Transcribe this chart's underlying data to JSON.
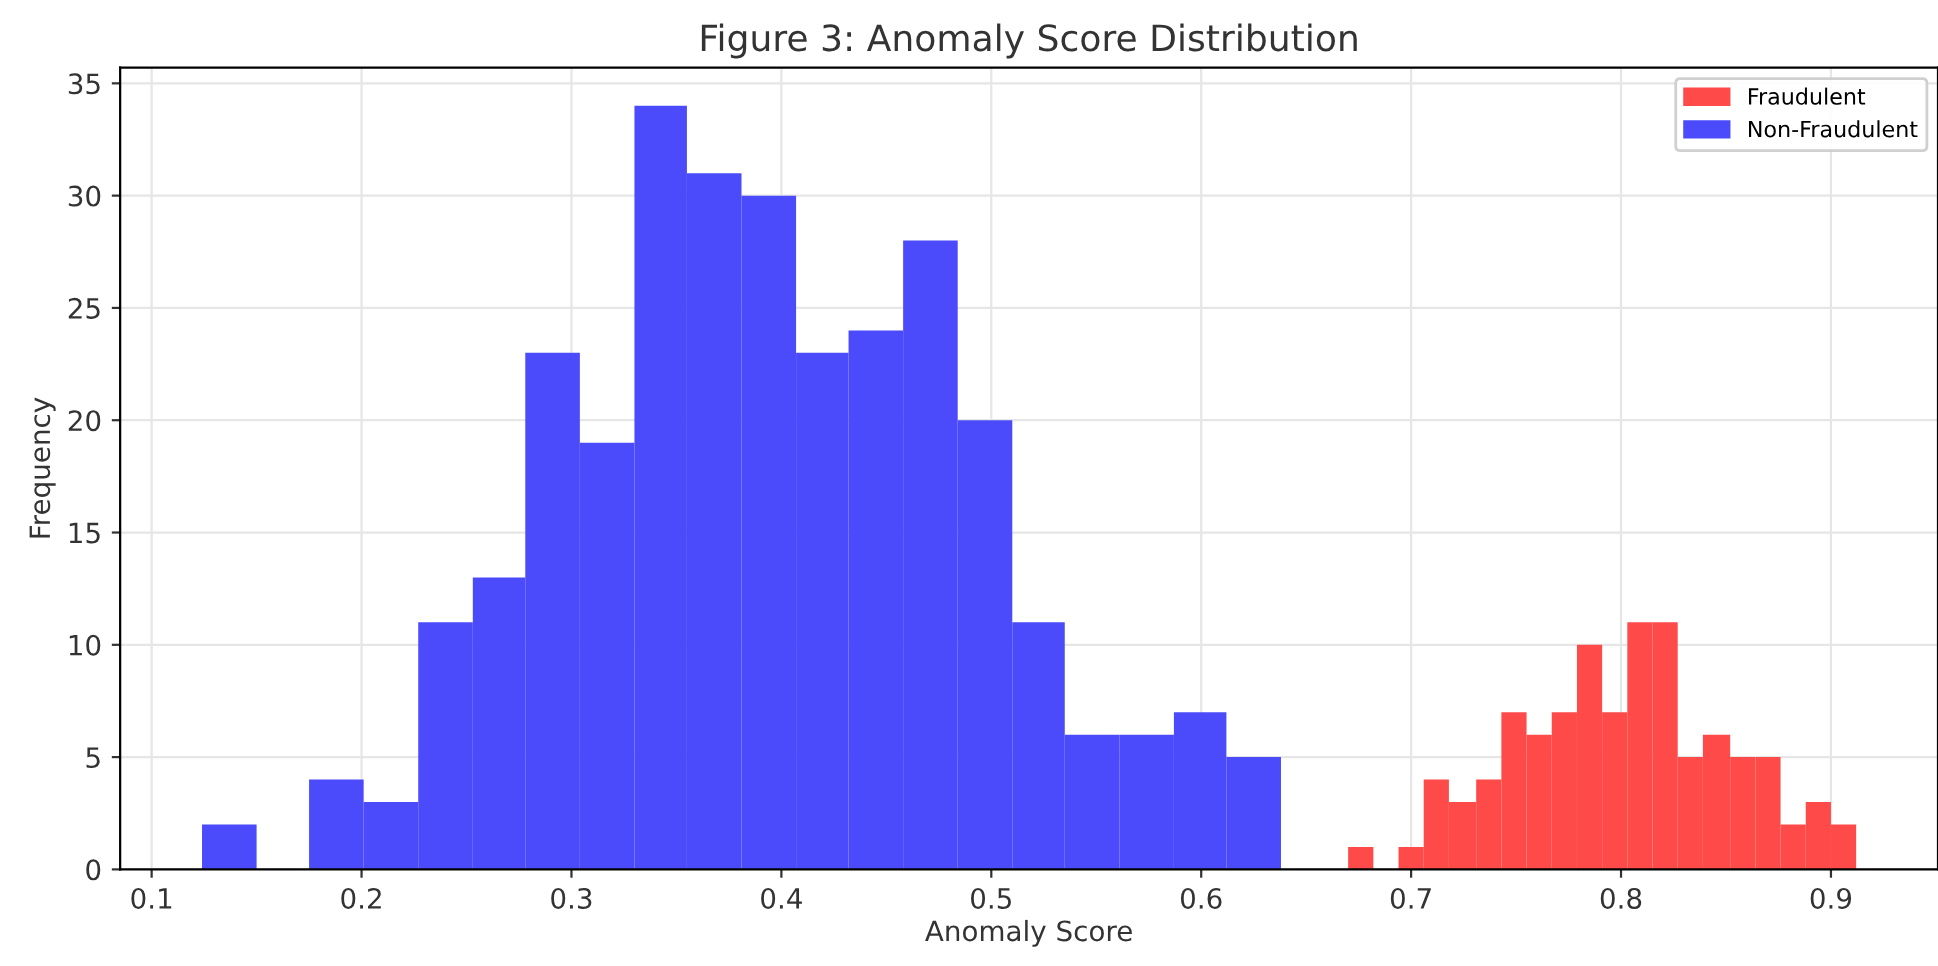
{
  "chart_data": {
    "type": "histogram",
    "title": "Figure 3: Anomaly Score Distribution",
    "xlabel": "Anomaly Score",
    "ylabel": "Frequency",
    "bins": [
      0.124,
      0.15,
      0.175,
      0.201,
      0.227,
      0.253,
      0.278,
      0.304,
      0.33,
      0.355,
      0.381,
      0.407,
      0.432,
      0.458,
      0.484,
      0.51,
      0.535,
      0.561,
      0.587,
      0.612,
      0.638,
      0.67,
      0.682,
      0.694,
      0.706,
      0.718,
      0.731,
      0.743,
      0.755,
      0.767,
      0.779,
      0.791,
      0.803,
      0.815,
      0.827,
      0.839,
      0.852,
      0.864,
      0.876,
      0.888,
      0.9,
      0.912
    ],
    "series": [
      {
        "name": "Fraudulent",
        "color": "#ff4a4a",
        "values": [
          null,
          null,
          null,
          null,
          null,
          null,
          null,
          null,
          null,
          null,
          null,
          null,
          null,
          null,
          null,
          null,
          null,
          null,
          null,
          null,
          null,
          1,
          0,
          1,
          4,
          3,
          4,
          7,
          6,
          7,
          10,
          7,
          11,
          11,
          5,
          6,
          5,
          5,
          2,
          3,
          2
        ]
      },
      {
        "name": "Non-Fraudulent",
        "color": "#4b4bfb",
        "values": [
          2,
          0,
          4,
          3,
          11,
          13,
          23,
          19,
          34,
          31,
          30,
          23,
          24,
          28,
          20,
          11,
          6,
          6,
          7,
          5,
          null,
          null,
          null,
          null,
          null,
          null,
          null,
          null,
          null,
          null,
          null,
          null,
          null,
          null,
          null,
          null,
          null,
          null,
          null,
          null,
          null
        ]
      }
    ],
    "xlim": [
      0.085,
      0.951
    ],
    "ylim": [
      0,
      35.7
    ],
    "xticks": [
      0.1,
      0.2,
      0.3,
      0.4,
      0.5,
      0.6,
      0.7,
      0.8,
      0.9
    ],
    "yticks": [
      0,
      5,
      10,
      15,
      20,
      25,
      30,
      35
    ],
    "grid": true,
    "legend": "top right"
  }
}
